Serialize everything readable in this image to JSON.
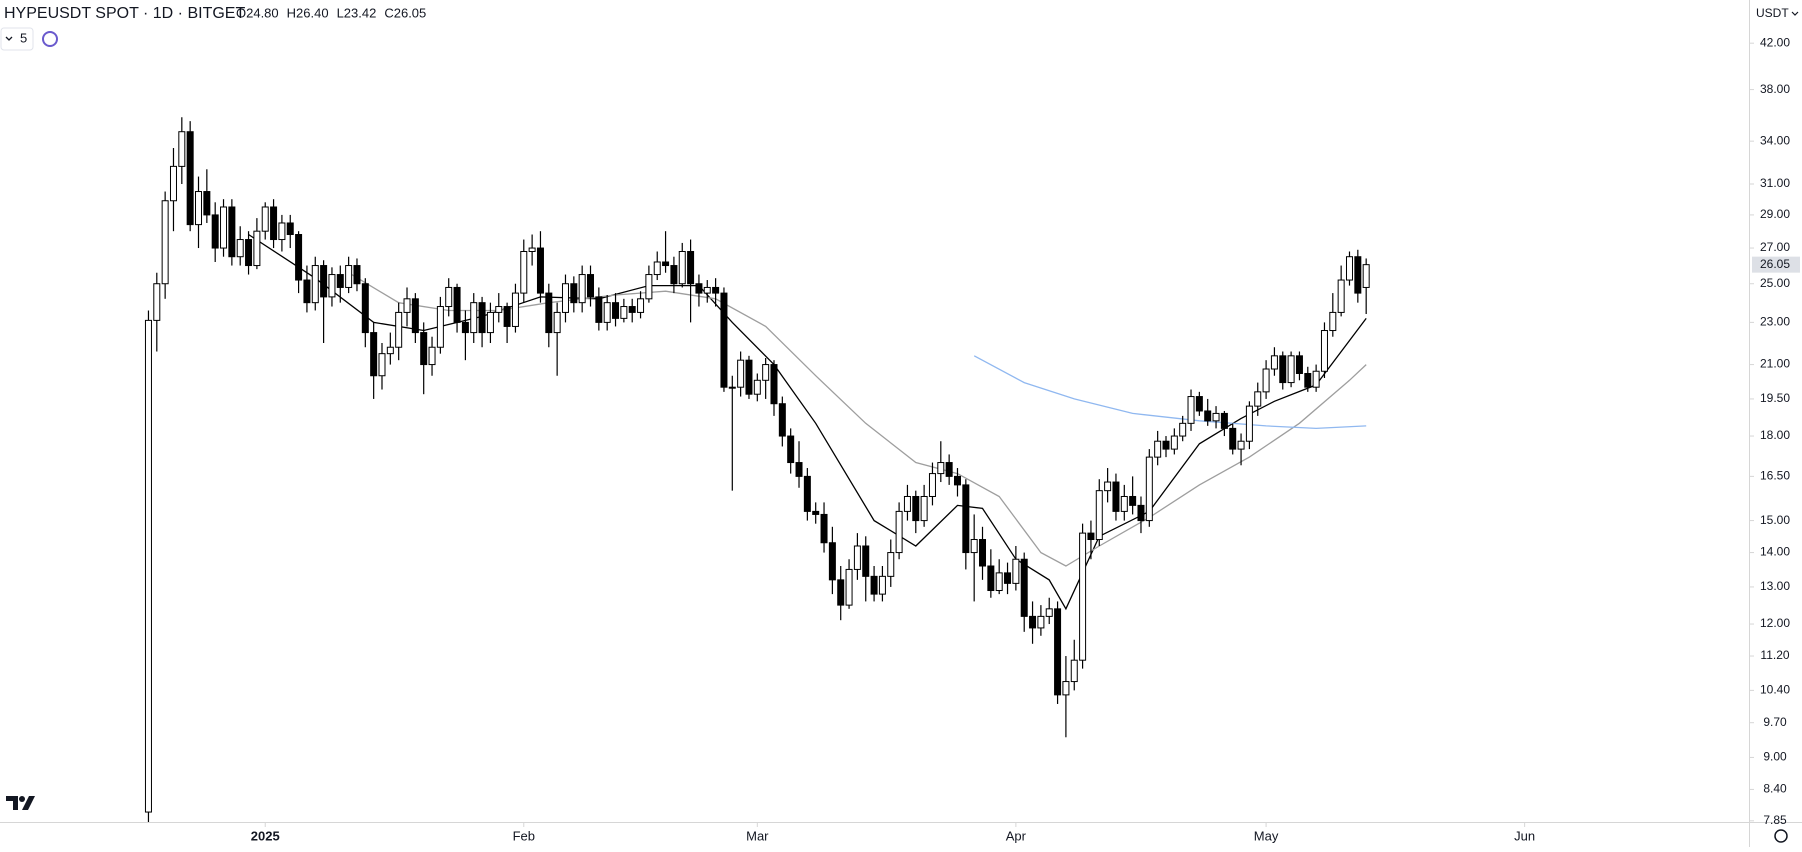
{
  "header": {
    "symbol": "HYPEUSDT SPOT · 1D · BITGET",
    "ohlc": [
      "O24.80",
      "H26.40",
      "L23.42",
      "C26.05"
    ],
    "indicator_count": "5",
    "currency": "USDT"
  },
  "chart_data": {
    "type": "candlestick",
    "log_scale": true,
    "grid": false,
    "up_color": "#ffffff",
    "down_color": "#000000",
    "edge_color": "#000000",
    "x": [
      0,
      1,
      2,
      3,
      4,
      5,
      6,
      7,
      8,
      9,
      10,
      11,
      12,
      13,
      14,
      15,
      16,
      17,
      18,
      19,
      20,
      21,
      22,
      23,
      24,
      25,
      26,
      27,
      28,
      29,
      30,
      31,
      32,
      33,
      34,
      35,
      36,
      37,
      38,
      39,
      40,
      41,
      42,
      43,
      44,
      45,
      46,
      47,
      48,
      49,
      50,
      51,
      52,
      53,
      54,
      55,
      56,
      57,
      58,
      59,
      60,
      61,
      62,
      63,
      64,
      65,
      66,
      67,
      68,
      69,
      70,
      71,
      72,
      73,
      74,
      75,
      76,
      77,
      78,
      79,
      80,
      81,
      82,
      83,
      84,
      85,
      86,
      87,
      88,
      89,
      90,
      91,
      92,
      93,
      94,
      95,
      96,
      97,
      98,
      99,
      100,
      101,
      102,
      103,
      104,
      105,
      106,
      107,
      108,
      109,
      110,
      111,
      112,
      113,
      114,
      115,
      116,
      117,
      118,
      119,
      120,
      121,
      122,
      123,
      124,
      125,
      126,
      127,
      128,
      129,
      130,
      131,
      132,
      133,
      134,
      135,
      136,
      137,
      138,
      139,
      140,
      141,
      142,
      143,
      144,
      145,
      146
    ],
    "ohlc": [
      [
        8.0,
        23.6,
        7.6,
        23.1
      ],
      [
        23.1,
        25.6,
        21.6,
        25.0
      ],
      [
        25.0,
        30.5,
        24.2,
        29.9
      ],
      [
        29.9,
        33.5,
        28.0,
        32.2
      ],
      [
        32.2,
        35.8,
        31.0,
        34.7
      ],
      [
        34.7,
        35.5,
        28.0,
        28.4
      ],
      [
        28.4,
        31.5,
        27.0,
        30.5
      ],
      [
        30.5,
        32.0,
        28.5,
        29.0
      ],
      [
        29.0,
        29.8,
        26.2,
        27.0
      ],
      [
        27.0,
        30.0,
        26.5,
        29.5
      ],
      [
        29.5,
        30.0,
        26.0,
        26.5
      ],
      [
        26.5,
        28.3,
        26.0,
        27.5
      ],
      [
        27.5,
        28.0,
        25.5,
        26.0
      ],
      [
        26.0,
        28.8,
        25.8,
        28.0
      ],
      [
        28.0,
        29.8,
        27.5,
        29.5
      ],
      [
        29.5,
        30.0,
        27.0,
        27.5
      ],
      [
        27.5,
        29.0,
        26.8,
        28.5
      ],
      [
        28.5,
        29.0,
        27.0,
        27.8
      ],
      [
        27.8,
        28.0,
        24.5,
        25.2
      ],
      [
        25.2,
        26.0,
        23.5,
        24.0
      ],
      [
        24.0,
        26.5,
        23.6,
        26.0
      ],
      [
        26.0,
        26.3,
        22.0,
        24.3
      ],
      [
        24.3,
        25.9,
        23.8,
        25.5
      ],
      [
        25.5,
        26.0,
        24.0,
        24.8
      ],
      [
        24.8,
        26.5,
        24.5,
        26.0
      ],
      [
        26.0,
        26.4,
        24.6,
        25.0
      ],
      [
        25.0,
        25.3,
        21.8,
        22.5
      ],
      [
        22.5,
        23.0,
        19.5,
        20.5
      ],
      [
        20.5,
        22.0,
        19.9,
        21.5
      ],
      [
        21.5,
        22.5,
        21.0,
        21.8
      ],
      [
        21.8,
        24.0,
        21.2,
        23.5
      ],
      [
        23.5,
        24.8,
        22.8,
        24.2
      ],
      [
        24.2,
        24.5,
        22.0,
        22.5
      ],
      [
        22.5,
        23.0,
        19.7,
        21.0
      ],
      [
        21.0,
        22.3,
        20.5,
        21.8
      ],
      [
        21.8,
        24.3,
        21.5,
        23.8
      ],
      [
        23.8,
        25.3,
        23.3,
        24.8
      ],
      [
        24.8,
        25.0,
        22.5,
        23.0
      ],
      [
        23.0,
        23.6,
        21.2,
        22.5
      ],
      [
        22.5,
        24.5,
        22.0,
        24.0
      ],
      [
        24.0,
        24.3,
        21.8,
        22.5
      ],
      [
        22.5,
        24.0,
        22.0,
        23.5
      ],
      [
        23.5,
        24.5,
        23.0,
        23.8
      ],
      [
        23.8,
        24.0,
        22.0,
        22.8
      ],
      [
        22.8,
        25.0,
        22.5,
        24.5
      ],
      [
        24.5,
        27.5,
        24.0,
        26.8
      ],
      [
        26.8,
        27.8,
        26.0,
        27.0
      ],
      [
        27.0,
        28.0,
        24.0,
        24.5
      ],
      [
        24.5,
        25.0,
        21.8,
        22.5
      ],
      [
        22.5,
        24.0,
        20.5,
        23.5
      ],
      [
        23.5,
        25.5,
        23.0,
        25.0
      ],
      [
        25.0,
        25.4,
        23.5,
        24.0
      ],
      [
        24.0,
        26.0,
        23.5,
        25.5
      ],
      [
        25.5,
        26.0,
        23.8,
        24.3
      ],
      [
        24.3,
        24.8,
        22.6,
        23.0
      ],
      [
        23.0,
        24.4,
        22.6,
        24.0
      ],
      [
        24.0,
        24.5,
        22.8,
        23.2
      ],
      [
        23.2,
        24.2,
        23.0,
        23.8
      ],
      [
        23.8,
        24.2,
        23.0,
        23.5
      ],
      [
        23.5,
        24.6,
        23.2,
        24.2
      ],
      [
        24.2,
        26.0,
        24.0,
        25.5
      ],
      [
        25.5,
        26.8,
        25.2,
        26.2
      ],
      [
        26.2,
        28.0,
        25.6,
        26.0
      ],
      [
        26.0,
        26.5,
        24.5,
        25.0
      ],
      [
        25.0,
        27.3,
        24.8,
        26.8
      ],
      [
        26.8,
        27.5,
        23.0,
        25.0
      ],
      [
        25.0,
        25.5,
        23.8,
        24.5
      ],
      [
        24.5,
        25.2,
        24.0,
        24.8
      ],
      [
        24.8,
        25.3,
        23.8,
        24.5
      ],
      [
        24.5,
        24.8,
        19.8,
        20.0
      ],
      [
        20.0,
        20.5,
        16.0,
        20.0
      ],
      [
        20.0,
        21.6,
        19.6,
        21.2
      ],
      [
        21.2,
        21.4,
        19.5,
        19.7
      ],
      [
        19.7,
        20.6,
        19.4,
        20.3
      ],
      [
        20.3,
        21.3,
        19.5,
        21.0
      ],
      [
        21.0,
        21.2,
        18.8,
        19.3
      ],
      [
        19.3,
        19.6,
        17.6,
        18.0
      ],
      [
        18.0,
        18.3,
        16.6,
        17.0
      ],
      [
        17.0,
        17.8,
        16.1,
        16.5
      ],
      [
        16.5,
        16.8,
        15.0,
        15.3
      ],
      [
        15.3,
        15.6,
        14.9,
        15.2
      ],
      [
        15.2,
        15.6,
        14.0,
        14.3
      ],
      [
        14.3,
        14.8,
        12.8,
        13.2
      ],
      [
        13.2,
        13.6,
        12.1,
        12.5
      ],
      [
        12.5,
        13.8,
        12.4,
        13.5
      ],
      [
        13.5,
        14.6,
        13.2,
        14.2
      ],
      [
        14.2,
        14.5,
        12.6,
        13.3
      ],
      [
        13.3,
        13.6,
        12.6,
        12.8
      ],
      [
        12.8,
        13.6,
        12.6,
        13.3
      ],
      [
        13.3,
        14.4,
        13.0,
        14.0
      ],
      [
        14.0,
        15.6,
        13.8,
        15.3
      ],
      [
        15.3,
        16.2,
        15.0,
        15.8
      ],
      [
        15.8,
        16.0,
        14.6,
        15.0
      ],
      [
        15.0,
        16.2,
        14.8,
        15.8
      ],
      [
        15.8,
        17.0,
        15.5,
        16.6
      ],
      [
        16.6,
        17.8,
        16.3,
        17.0
      ],
      [
        17.0,
        17.3,
        16.2,
        16.5
      ],
      [
        16.5,
        16.8,
        15.8,
        16.2
      ],
      [
        16.2,
        16.4,
        13.5,
        14.0
      ],
      [
        14.0,
        15.2,
        12.6,
        14.4
      ],
      [
        14.4,
        14.8,
        13.2,
        13.6
      ],
      [
        13.6,
        14.1,
        12.7,
        12.9
      ],
      [
        12.9,
        13.8,
        12.8,
        13.4
      ],
      [
        13.4,
        13.7,
        12.8,
        13.1
      ],
      [
        13.1,
        14.2,
        12.9,
        13.8
      ],
      [
        13.8,
        14.0,
        11.8,
        12.2
      ],
      [
        12.2,
        12.6,
        11.5,
        11.9
      ],
      [
        11.9,
        12.5,
        11.7,
        12.2
      ],
      [
        12.2,
        12.7,
        12.0,
        12.4
      ],
      [
        12.4,
        12.6,
        10.1,
        10.3
      ],
      [
        10.3,
        11.2,
        9.4,
        10.6
      ],
      [
        10.6,
        11.6,
        10.4,
        11.1
      ],
      [
        11.1,
        14.9,
        10.9,
        14.6
      ],
      [
        14.6,
        15.0,
        13.8,
        14.4
      ],
      [
        14.4,
        16.4,
        14.2,
        16.0
      ],
      [
        16.0,
        16.8,
        15.6,
        16.3
      ],
      [
        16.3,
        16.6,
        15.0,
        15.3
      ],
      [
        15.3,
        16.2,
        15.0,
        15.8
      ],
      [
        15.8,
        16.5,
        15.2,
        15.5
      ],
      [
        15.5,
        15.8,
        14.6,
        15.0
      ],
      [
        15.0,
        17.5,
        14.8,
        17.2
      ],
      [
        17.2,
        18.2,
        16.9,
        17.8
      ],
      [
        17.8,
        18.0,
        17.2,
        17.5
      ],
      [
        17.5,
        18.3,
        17.3,
        18.0
      ],
      [
        18.0,
        18.8,
        17.8,
        18.5
      ],
      [
        18.5,
        19.9,
        18.2,
        19.6
      ],
      [
        19.6,
        19.8,
        18.8,
        19.0
      ],
      [
        19.0,
        19.5,
        18.4,
        18.6
      ],
      [
        18.6,
        19.2,
        18.3,
        18.9
      ],
      [
        18.9,
        19.0,
        18.0,
        18.3
      ],
      [
        18.3,
        18.5,
        17.3,
        17.5
      ],
      [
        17.5,
        18.1,
        16.9,
        17.8
      ],
      [
        17.8,
        19.4,
        17.5,
        19.2
      ],
      [
        19.2,
        20.2,
        18.8,
        19.8
      ],
      [
        19.8,
        21.2,
        19.5,
        20.8
      ],
      [
        20.8,
        21.8,
        20.5,
        21.4
      ],
      [
        21.4,
        21.6,
        19.9,
        20.2
      ],
      [
        20.2,
        21.6,
        20.0,
        21.4
      ],
      [
        21.4,
        21.6,
        20.3,
        20.6
      ],
      [
        20.6,
        20.9,
        19.8,
        20.0
      ],
      [
        20.0,
        21.0,
        19.8,
        20.7
      ],
      [
        20.7,
        23.0,
        20.4,
        22.6
      ],
      [
        22.6,
        24.5,
        22.3,
        23.5
      ],
      [
        23.5,
        26.0,
        23.3,
        25.2
      ],
      [
        25.2,
        26.8,
        24.9,
        26.5
      ],
      [
        26.5,
        26.9,
        24.0,
        24.5
      ],
      [
        24.8,
        26.4,
        23.42,
        26.05
      ]
    ],
    "lines": [
      {
        "color": "#000000",
        "x": [
          12,
          20,
          27,
          33,
          40,
          47,
          54,
          60,
          66,
          70,
          75,
          80,
          87,
          92,
          97,
          100,
          104,
          108,
          110,
          114,
          120,
          126,
          131,
          135,
          140,
          146
        ],
        "values": [
          27.8,
          25.3,
          23.0,
          22.6,
          23.3,
          24.3,
          24.2,
          24.9,
          24.9,
          23.0,
          21.0,
          18.5,
          15.0,
          14.2,
          15.5,
          15.4,
          13.8,
          13.2,
          12.4,
          14.5,
          15.3,
          17.7,
          18.7,
          19.4,
          20.1,
          23.2
        ]
      },
      {
        "color": "#9e9e9e",
        "x": [
          24,
          30,
          36,
          42,
          48,
          56,
          62,
          68,
          74,
          80,
          86,
          92,
          97,
          102,
          107,
          110,
          114,
          120,
          126,
          132,
          138,
          144,
          146
        ],
        "values": [
          25.6,
          24.0,
          23.6,
          23.6,
          24.0,
          24.4,
          24.6,
          24.2,
          22.8,
          20.5,
          18.5,
          17.0,
          16.6,
          15.8,
          14.0,
          13.6,
          14.2,
          15.1,
          16.2,
          17.2,
          18.5,
          20.3,
          21.0
        ]
      },
      {
        "color": "#90b8f0",
        "x": [
          99,
          105,
          111,
          118,
          126,
          134,
          140,
          146
        ],
        "values": [
          21.4,
          20.2,
          19.5,
          18.9,
          18.6,
          18.4,
          18.3,
          18.4
        ]
      }
    ],
    "xlim": [
      -17.8,
      191.9
    ],
    "xticks": [
      {
        "value": 14,
        "label": "2025"
      },
      {
        "value": 45,
        "label": "Feb"
      },
      {
        "value": 73,
        "label": "Mar"
      },
      {
        "value": 104,
        "label": "Apr"
      },
      {
        "value": 134,
        "label": "May"
      },
      {
        "value": 165,
        "label": "Jun"
      }
    ],
    "ylim": [
      7.83,
      46.1
    ],
    "yticks": [
      {
        "value": 42,
        "label": "42.00"
      },
      {
        "value": 38,
        "label": "38.00"
      },
      {
        "value": 34,
        "label": "34.00"
      },
      {
        "value": 31,
        "label": "31.00"
      },
      {
        "value": 29,
        "label": "29.00"
      },
      {
        "value": 27,
        "label": "27.00"
      },
      {
        "value": 25,
        "label": "25.00"
      },
      {
        "value": 23,
        "label": "23.00"
      },
      {
        "value": 21,
        "label": "21.00"
      },
      {
        "value": 19.5,
        "label": "19.50"
      },
      {
        "value": 18,
        "label": "18.00"
      },
      {
        "value": 16.5,
        "label": "16.50"
      },
      {
        "value": 15,
        "label": "15.00"
      },
      {
        "value": 14,
        "label": "14.00"
      },
      {
        "value": 13,
        "label": "13.00"
      },
      {
        "value": 12,
        "label": "12.00"
      },
      {
        "value": 11.2,
        "label": "11.20"
      },
      {
        "value": 10.4,
        "label": "10.40"
      },
      {
        "value": 9.7,
        "label": "9.70"
      },
      {
        "value": 9,
        "label": "9.00"
      },
      {
        "value": 8.4,
        "label": "8.40"
      },
      {
        "value": 7.85,
        "label": "7.85"
      }
    ]
  }
}
